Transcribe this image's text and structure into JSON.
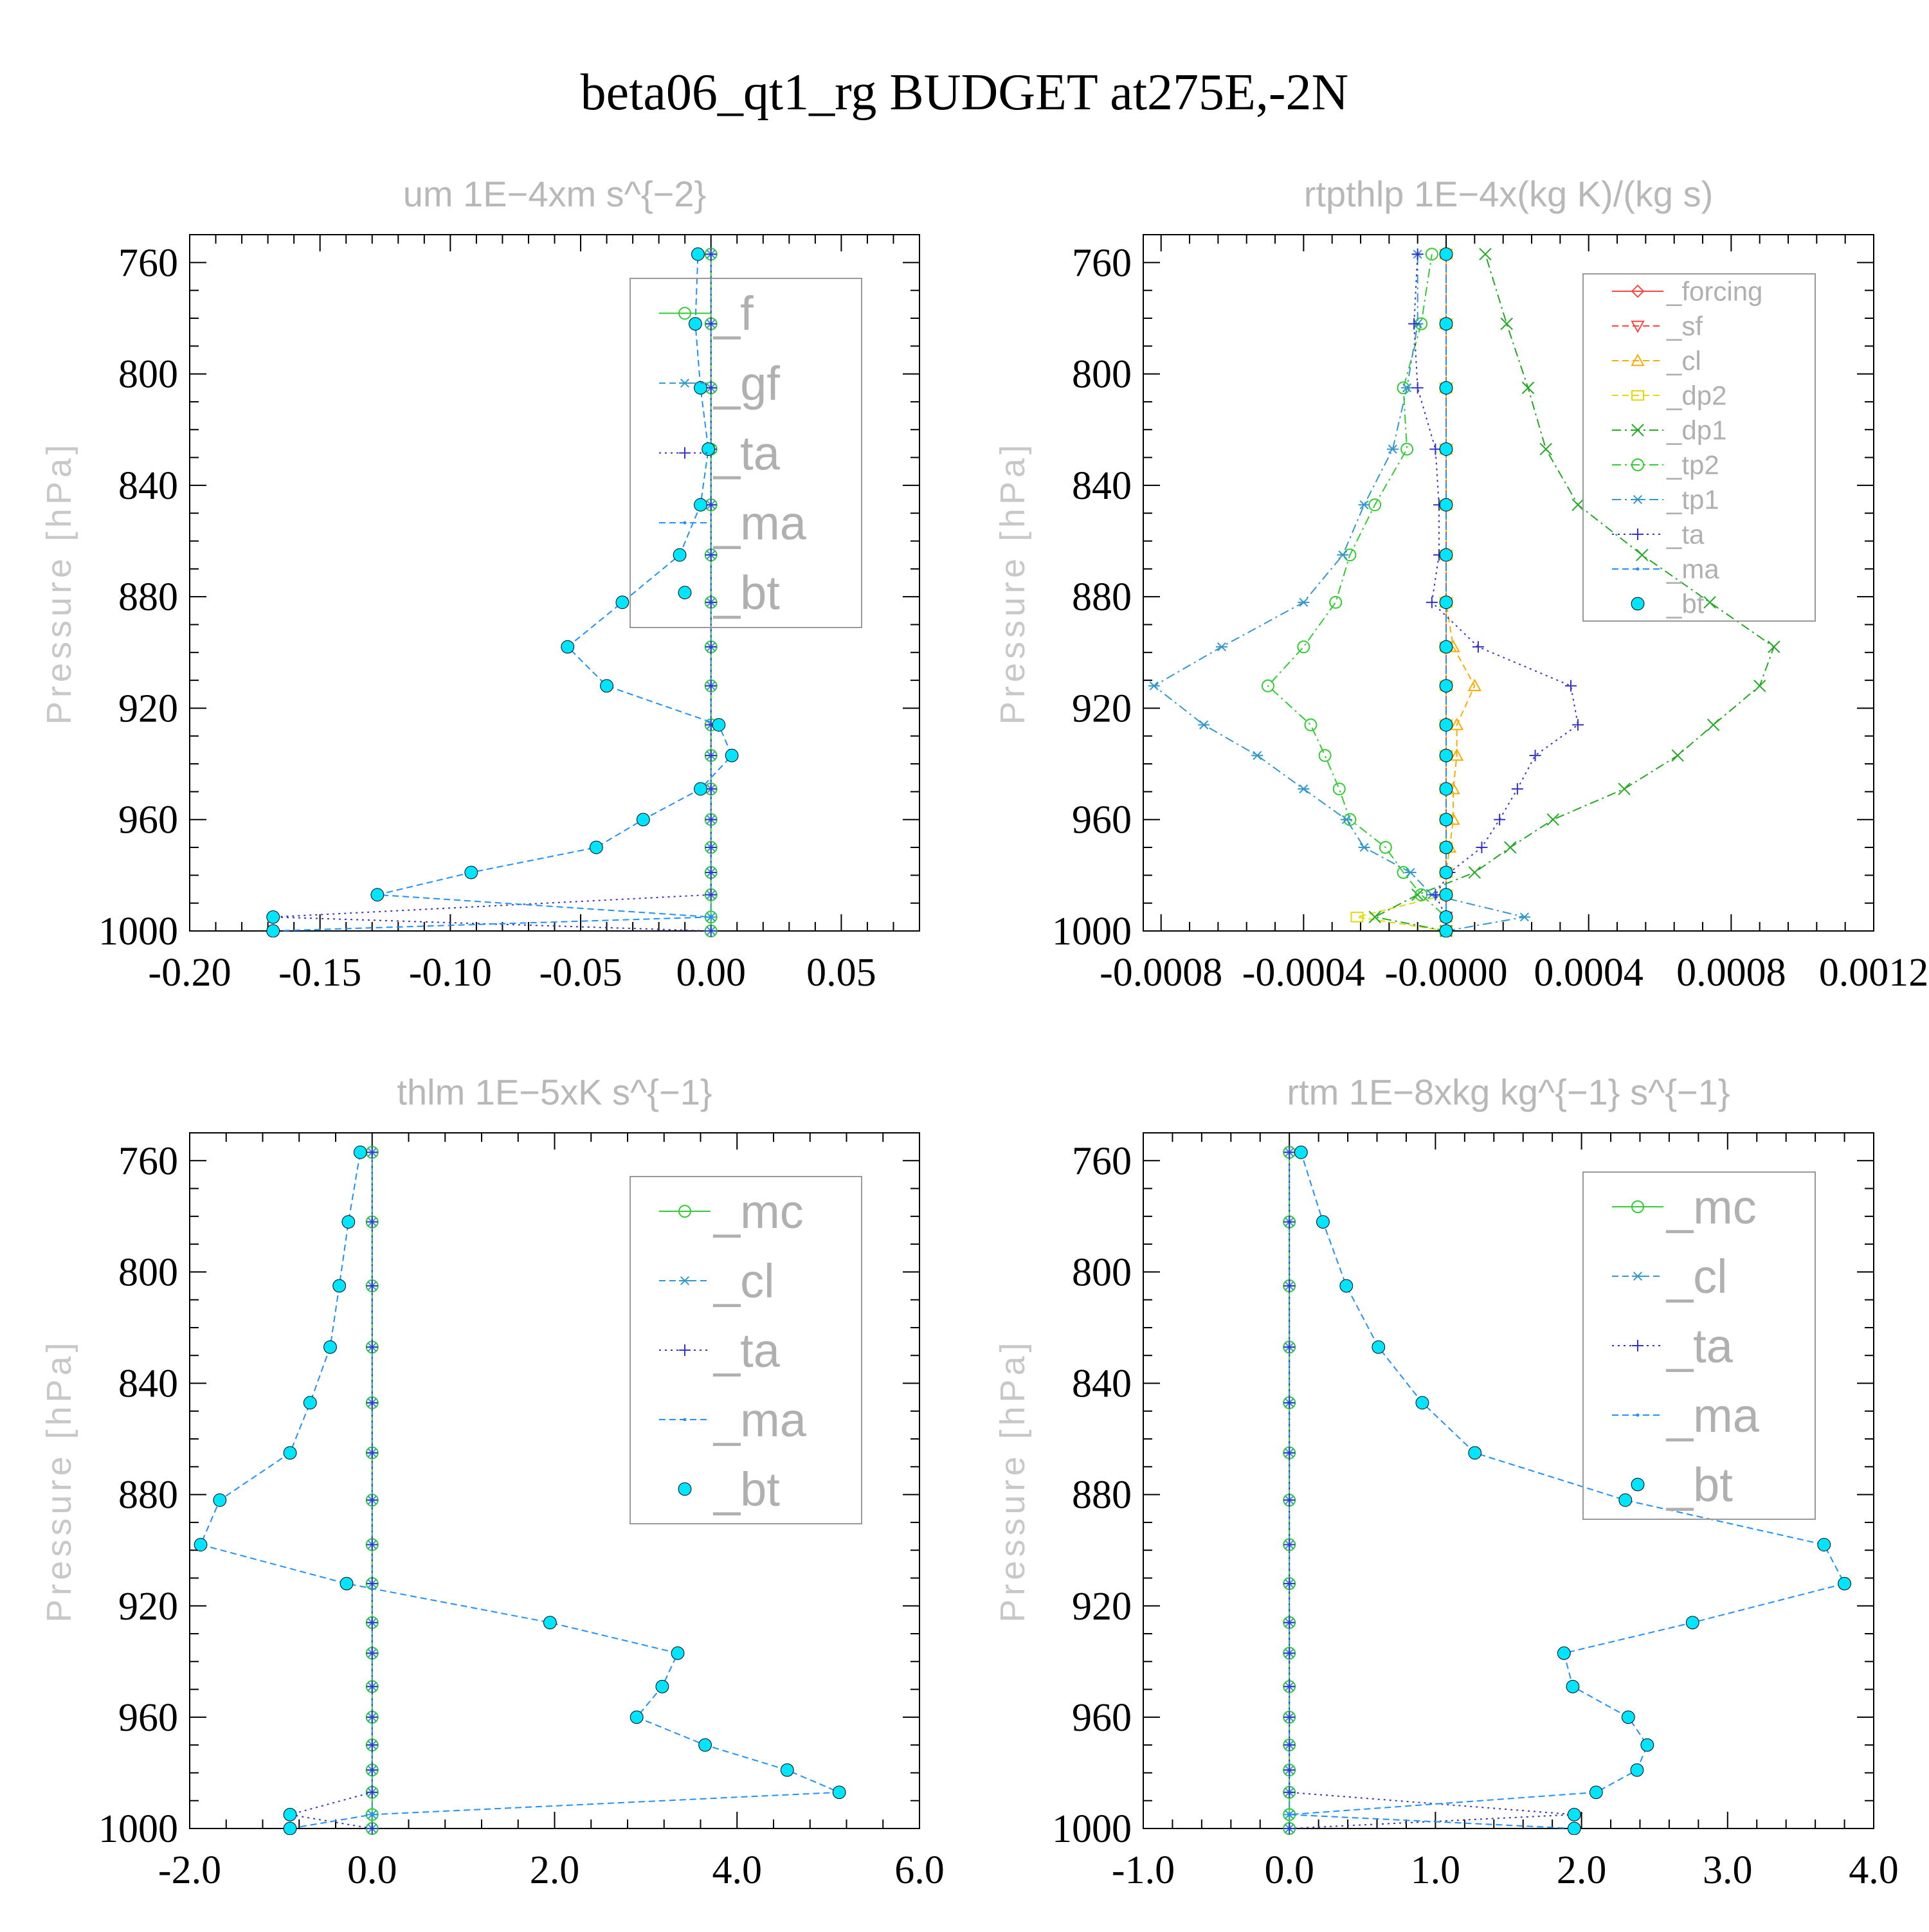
{
  "title": "beta06_qt1_rg  BUDGET at275E,-2N",
  "chart_data": [
    {
      "type": "line",
      "title": "um   1E−4xm s^{−2}",
      "ylabel": "Pressure [hPa]",
      "xlim": [
        -0.2,
        0.08
      ],
      "ylim": [
        750,
        1000
      ],
      "y_inverted": true,
      "xticks": [
        -0.2,
        -0.15,
        -0.1,
        -0.05,
        0.0,
        0.05
      ],
      "xtick_labels": [
        "-0.20",
        "-0.15",
        "-0.10",
        "-0.05",
        "0.00",
        "0.05"
      ],
      "yticks": [
        760,
        800,
        840,
        880,
        920,
        960,
        1000
      ],
      "ytick_labels": [
        "760",
        "800",
        "840",
        "880",
        "920",
        "960",
        "1000"
      ],
      "legend_placement": "top-right",
      "y": [
        1000,
        995,
        987,
        979,
        970,
        960,
        949,
        937,
        926,
        912,
        898,
        882,
        865,
        847,
        827,
        805,
        782,
        757
      ],
      "series": [
        {
          "name": "_f",
          "color": "#33cc33",
          "marker": "circle-open",
          "dash": "solid",
          "values": [
            0,
            0,
            0,
            0,
            0,
            0,
            0,
            0,
            0,
            0,
            0,
            0,
            0,
            0,
            0,
            0,
            0,
            0
          ]
        },
        {
          "name": "_gf",
          "color": "#3399cc",
          "marker": "asterisk",
          "dash": "dash",
          "values": [
            0,
            0,
            0,
            0,
            0,
            0,
            0,
            0,
            0,
            0,
            0,
            0,
            0,
            0,
            0,
            0,
            0,
            0
          ]
        },
        {
          "name": "_ta",
          "color": "#3333cc",
          "marker": "plus",
          "dash": "dot",
          "values": [
            0,
            -0.168,
            0,
            0,
            0,
            0,
            0,
            0,
            0,
            0,
            0,
            0,
            0,
            0,
            0,
            0,
            0,
            0
          ]
        },
        {
          "name": "_ma",
          "color": "#1e90ff",
          "marker": "dot",
          "dash": "dash",
          "values": [
            -0.168,
            0,
            -0.128,
            -0.092,
            -0.044,
            -0.026,
            -0.004,
            0.008,
            0.003,
            -0.04,
            -0.055,
            -0.034,
            -0.012,
            -0.004,
            -0.001,
            -0.004,
            -0.006,
            -0.005
          ]
        },
        {
          "name": "_bt",
          "color": "#00e5ff",
          "marker": "filled-circle",
          "dash": "none",
          "values": [
            -0.168,
            -0.168,
            -0.128,
            -0.092,
            -0.044,
            -0.026,
            -0.004,
            0.008,
            0.003,
            -0.04,
            -0.055,
            -0.034,
            -0.012,
            -0.004,
            -0.001,
            -0.004,
            -0.006,
            -0.005
          ]
        }
      ]
    },
    {
      "type": "line",
      "title": "rtpthlp   1E−4x(kg K)/(kg s)",
      "ylabel": "Pressure [hPa]",
      "xlim": [
        -0.00085,
        0.0012
      ],
      "ylim": [
        750,
        1000
      ],
      "y_inverted": true,
      "xticks": [
        -0.0008,
        -0.0004,
        0.0,
        0.0004,
        0.0008,
        0.0012
      ],
      "xtick_labels": [
        "-0.0008",
        "-0.0004",
        "-0.0000",
        "0.0004",
        "0.0008",
        "0.0012"
      ],
      "yticks": [
        760,
        800,
        840,
        880,
        920,
        960,
        1000
      ],
      "ytick_labels": [
        "760",
        "800",
        "840",
        "880",
        "920",
        "960",
        "1000"
      ],
      "legend_placement": "top-right",
      "y": [
        1000,
        995,
        987,
        979,
        970,
        960,
        949,
        937,
        926,
        912,
        898,
        882,
        865,
        847,
        827,
        805,
        782,
        757
      ],
      "series": [
        {
          "name": "_forcing",
          "color": "#ff4444",
          "marker": "diamond-open",
          "dash": "solid",
          "values": [
            0,
            0,
            0,
            0,
            0,
            0,
            0,
            0,
            0,
            0,
            0,
            0,
            0,
            0,
            0,
            0,
            0,
            0
          ]
        },
        {
          "name": "_sf",
          "color": "#ff4444",
          "marker": "triangle-down-open",
          "dash": "dash",
          "values": [
            0,
            0,
            0,
            0,
            0,
            0,
            0,
            0,
            0,
            0,
            0,
            0,
            0,
            0,
            0,
            0,
            0,
            0
          ]
        },
        {
          "name": "_cl",
          "color": "#ffaa00",
          "marker": "triangle-open",
          "dash": "dash",
          "values": [
            0,
            0,
            0,
            0,
            1e-05,
            2e-05,
            2e-05,
            3e-05,
            3e-05,
            8e-05,
            2e-05,
            0,
            0,
            0,
            0,
            0,
            0,
            0
          ]
        },
        {
          "name": "_dp2",
          "color": "#e6d800",
          "marker": "square-open",
          "dash": "dash",
          "values": [
            0,
            -0.00025,
            0,
            0,
            0,
            0,
            0,
            0,
            0,
            0,
            0,
            0,
            0,
            0,
            0,
            0,
            0,
            0
          ]
        },
        {
          "name": "_dp1",
          "color": "#22aa22",
          "marker": "x",
          "dash": "dashdot",
          "values": [
            0,
            -0.0002,
            -8e-05,
            8e-05,
            0.00018,
            0.0003,
            0.0005,
            0.00065,
            0.00075,
            0.00088,
            0.00092,
            0.00074,
            0.00055,
            0.00037,
            0.00028,
            0.00023,
            0.00017,
            0.00011
          ]
        },
        {
          "name": "_tp2",
          "color": "#33cc33",
          "marker": "circle-open",
          "dash": "dashdot",
          "values": [
            0,
            0,
            -7e-05,
            -0.00012,
            -0.00017,
            -0.00027,
            -0.0003,
            -0.00034,
            -0.00038,
            -0.0005,
            -0.0004,
            -0.00031,
            -0.00027,
            -0.0002,
            -0.00011,
            -0.00012,
            -7e-05,
            -4e-05
          ]
        },
        {
          "name": "_tp1",
          "color": "#3399cc",
          "marker": "asterisk",
          "dash": "dashdot",
          "values": [
            0,
            0.00022,
            -4e-05,
            -0.0001,
            -0.00023,
            -0.00028,
            -0.0004,
            -0.00053,
            -0.00068,
            -0.00082,
            -0.00063,
            -0.0004,
            -0.00029,
            -0.00023,
            -0.00015,
            -0.00011,
            -8e-05,
            -8e-05
          ]
        },
        {
          "name": "_ta",
          "color": "#3333cc",
          "marker": "plus",
          "dash": "dot",
          "values": [
            0,
            0,
            -3e-05,
            1e-05,
            0.0001,
            0.00015,
            0.0002,
            0.00025,
            0.00037,
            0.00035,
            9e-05,
            -4e-05,
            -2e-05,
            -2e-05,
            -3e-05,
            -8e-05,
            -9e-05,
            -8e-05
          ]
        },
        {
          "name": "_ma",
          "color": "#1e90ff",
          "marker": "dot",
          "dash": "dash",
          "values": [
            0,
            0,
            0,
            0,
            0,
            0,
            0,
            0,
            0,
            0,
            0,
            0,
            0,
            0,
            0,
            0,
            0,
            0
          ]
        },
        {
          "name": "_bt",
          "color": "#00e5ff",
          "marker": "filled-circle",
          "dash": "none",
          "values": [
            0,
            0,
            0,
            0,
            0,
            0,
            0,
            0,
            0,
            0,
            0,
            0,
            0,
            0,
            0,
            0,
            0,
            0
          ]
        }
      ]
    },
    {
      "type": "line",
      "title": "thlm   1E−5xK s^{−1}",
      "ylabel": "Pressure [hPa]",
      "xlim": [
        -2.0,
        6.0
      ],
      "ylim": [
        750,
        1000
      ],
      "y_inverted": true,
      "xticks": [
        -2.0,
        0.0,
        2.0,
        4.0,
        6.0
      ],
      "xtick_labels": [
        "-2.0",
        "0.0",
        "2.0",
        "4.0",
        "6.0"
      ],
      "yticks": [
        760,
        800,
        840,
        880,
        920,
        960,
        1000
      ],
      "ytick_labels": [
        "760",
        "800",
        "840",
        "880",
        "920",
        "960",
        "1000"
      ],
      "legend_placement": "top-right",
      "y": [
        1000,
        995,
        987,
        979,
        970,
        960,
        949,
        937,
        926,
        912,
        898,
        882,
        865,
        847,
        827,
        805,
        782,
        757
      ],
      "series": [
        {
          "name": "_mc",
          "color": "#33cc33",
          "marker": "circle-open",
          "dash": "solid",
          "values": [
            0,
            0,
            0,
            0,
            0,
            0,
            0,
            0,
            0,
            0,
            0,
            0,
            0,
            0,
            0,
            0,
            0,
            0
          ]
        },
        {
          "name": "_cl",
          "color": "#3399cc",
          "marker": "asterisk",
          "dash": "dash",
          "values": [
            0,
            0,
            0,
            0,
            0,
            0,
            0,
            0,
            0,
            0,
            0,
            0,
            0,
            0,
            0,
            0,
            0,
            0
          ]
        },
        {
          "name": "_ta",
          "color": "#3333cc",
          "marker": "plus",
          "dash": "dot",
          "values": [
            0,
            -0.9,
            0,
            0,
            0,
            0,
            0,
            0,
            0,
            0,
            0,
            0,
            0,
            0,
            0,
            0,
            0,
            0
          ]
        },
        {
          "name": "_ma",
          "color": "#1e90ff",
          "marker": "dot",
          "dash": "dash",
          "values": [
            -0.9,
            0,
            5.12,
            4.55,
            3.65,
            2.9,
            3.18,
            3.35,
            1.95,
            -0.28,
            -1.88,
            -1.67,
            -0.9,
            -0.68,
            -0.46,
            -0.36,
            -0.26,
            -0.13
          ]
        },
        {
          "name": "_bt",
          "color": "#00e5ff",
          "marker": "filled-circle",
          "dash": "none",
          "values": [
            -0.9,
            -0.9,
            5.12,
            4.55,
            3.65,
            2.9,
            3.18,
            3.35,
            1.95,
            -0.28,
            -1.88,
            -1.67,
            -0.9,
            -0.68,
            -0.46,
            -0.36,
            -0.26,
            -0.13
          ]
        }
      ]
    },
    {
      "type": "line",
      "title": "rtm   1E−8xkg kg^{−1} s^{−1}",
      "ylabel": "Pressure [hPa]",
      "xlim": [
        -1.0,
        4.0
      ],
      "ylim": [
        750,
        1000
      ],
      "y_inverted": true,
      "xticks": [
        -1.0,
        0.0,
        1.0,
        2.0,
        3.0,
        4.0
      ],
      "xtick_labels": [
        "-1.0",
        "0.0",
        "1.0",
        "2.0",
        "3.0",
        "4.0"
      ],
      "yticks": [
        760,
        800,
        840,
        880,
        920,
        960,
        1000
      ],
      "ytick_labels": [
        "760",
        "800",
        "840",
        "880",
        "920",
        "960",
        "1000"
      ],
      "legend_placement": "top-right",
      "y": [
        1000,
        995,
        987,
        979,
        970,
        960,
        949,
        937,
        926,
        912,
        898,
        882,
        865,
        847,
        827,
        805,
        782,
        757
      ],
      "series": [
        {
          "name": "_mc",
          "color": "#33cc33",
          "marker": "circle-open",
          "dash": "solid",
          "values": [
            0,
            0,
            0,
            0,
            0,
            0,
            0,
            0,
            0,
            0,
            0,
            0,
            0,
            0,
            0,
            0,
            0,
            0
          ]
        },
        {
          "name": "_cl",
          "color": "#3399cc",
          "marker": "asterisk",
          "dash": "dash",
          "values": [
            0,
            0,
            0,
            0,
            0,
            0,
            0,
            0,
            0,
            0,
            0,
            0,
            0,
            0,
            0,
            0,
            0,
            0
          ]
        },
        {
          "name": "_ta",
          "color": "#3333cc",
          "marker": "plus",
          "dash": "dot",
          "values": [
            0,
            1.95,
            0,
            0,
            0,
            0,
            0,
            0,
            0,
            0,
            0,
            0,
            0,
            0,
            0,
            0,
            0,
            0
          ]
        },
        {
          "name": "_ma",
          "color": "#1e90ff",
          "marker": "dot",
          "dash": "dash",
          "values": [
            1.95,
            0,
            2.1,
            2.38,
            2.45,
            2.32,
            1.94,
            1.88,
            2.76,
            3.8,
            3.66,
            2.3,
            1.27,
            0.91,
            0.61,
            0.39,
            0.23,
            0.08
          ]
        },
        {
          "name": "_bt",
          "color": "#00e5ff",
          "marker": "filled-circle",
          "dash": "none",
          "values": [
            1.95,
            1.95,
            2.1,
            2.38,
            2.45,
            2.32,
            1.94,
            1.88,
            2.76,
            3.8,
            3.66,
            2.3,
            1.27,
            0.91,
            0.61,
            0.39,
            0.23,
            0.08
          ]
        }
      ]
    }
  ]
}
